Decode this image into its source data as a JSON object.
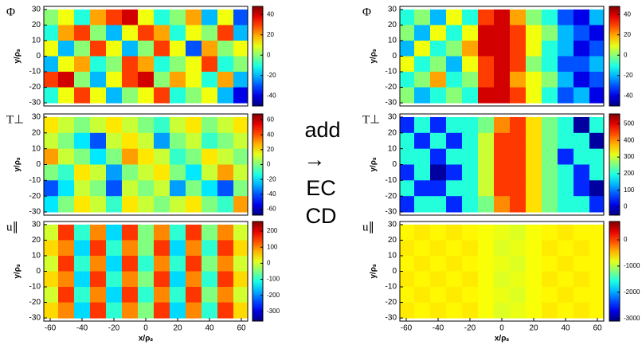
{
  "annotation": [
    "add",
    "→",
    "EC",
    "CD"
  ],
  "chart_data": [
    {
      "type": "heatmap",
      "title": "Φ",
      "ylabel": "y/ρₛ",
      "x": [
        -60,
        -50,
        -40,
        -30,
        -20,
        -10,
        0,
        10,
        20,
        30,
        40,
        50,
        60
      ],
      "y": [
        25,
        15,
        5,
        -5,
        -15,
        -25
      ],
      "z": [
        [
          0,
          10,
          -10,
          20,
          30,
          40,
          10,
          -10,
          0,
          20,
          -20,
          10,
          -30
        ],
        [
          -10,
          20,
          30,
          0,
          -20,
          10,
          30,
          20,
          -10,
          10,
          0,
          30,
          -20
        ],
        [
          10,
          -20,
          0,
          30,
          10,
          -20,
          0,
          30,
          10,
          -30,
          20,
          0,
          10
        ],
        [
          -20,
          10,
          20,
          -10,
          0,
          30,
          20,
          -10,
          0,
          10,
          30,
          -10,
          0
        ],
        [
          30,
          40,
          0,
          -20,
          10,
          30,
          40,
          0,
          20,
          10,
          -10,
          20,
          -20
        ],
        [
          -10,
          10,
          30,
          10,
          -20,
          0,
          10,
          30,
          -10,
          0,
          10,
          -20,
          -40
        ]
      ],
      "xlim": [
        -64,
        64
      ],
      "ylim": [
        -32,
        32
      ],
      "yticks": [
        -30,
        -20,
        -10,
        0,
        10,
        20,
        30
      ],
      "clim": [
        -50,
        48
      ],
      "cticks": [
        -40,
        -20,
        0,
        20,
        40
      ]
    },
    {
      "type": "heatmap",
      "title": "T⊥",
      "ylabel": "y/ρₛ",
      "x": [
        -60,
        -50,
        -40,
        -30,
        -20,
        -10,
        0,
        10,
        20,
        30,
        40,
        50,
        60
      ],
      "y": [
        25,
        15,
        5,
        -5,
        -15,
        -25
      ],
      "z": [
        [
          20,
          10,
          0,
          10,
          20,
          10,
          0,
          -10,
          10,
          20,
          0,
          10,
          20
        ],
        [
          10,
          0,
          -20,
          -40,
          10,
          20,
          10,
          -30,
          0,
          10,
          -10,
          0,
          10
        ],
        [
          30,
          10,
          0,
          -20,
          0,
          30,
          20,
          10,
          -10,
          0,
          20,
          10,
          0
        ],
        [
          0,
          -10,
          20,
          10,
          -30,
          0,
          10,
          20,
          0,
          -20,
          10,
          30,
          10
        ],
        [
          -40,
          -20,
          10,
          0,
          -40,
          10,
          0,
          10,
          -30,
          0,
          -20,
          -40,
          0
        ],
        [
          -20,
          0,
          20,
          10,
          -10,
          20,
          10,
          0,
          10,
          20,
          0,
          -10,
          30
        ]
      ],
      "xlim": [
        -64,
        64
      ],
      "ylim": [
        -32,
        32
      ],
      "yticks": [
        -30,
        -20,
        -10,
        0,
        10,
        20,
        30
      ],
      "clim": [
        -68,
        68
      ],
      "cticks": [
        -60,
        -40,
        -20,
        0,
        20,
        40,
        60
      ]
    },
    {
      "type": "heatmap",
      "title": "u∥",
      "ylabel": "y/ρₛ",
      "xlabel": "x/ρₛ",
      "x": [
        -60,
        -50,
        -40,
        -30,
        -20,
        -10,
        0,
        10,
        20,
        30,
        40,
        50,
        60
      ],
      "y": [
        25,
        15,
        5,
        -5,
        -15,
        -25
      ],
      "z": [
        [
          0,
          150,
          -100,
          100,
          -150,
          150,
          -50,
          100,
          -100,
          150,
          -50,
          100,
          0
        ],
        [
          50,
          100,
          -150,
          150,
          -100,
          100,
          -50,
          150,
          -150,
          100,
          -100,
          150,
          50
        ],
        [
          0,
          150,
          -100,
          100,
          -150,
          150,
          -100,
          100,
          -100,
          150,
          -50,
          100,
          0
        ],
        [
          50,
          100,
          -150,
          150,
          -100,
          100,
          -50,
          150,
          -150,
          100,
          -100,
          150,
          50
        ],
        [
          0,
          150,
          -100,
          100,
          -150,
          150,
          -100,
          100,
          -100,
          150,
          -50,
          100,
          0
        ],
        [
          50,
          100,
          -150,
          150,
          -100,
          100,
          -50,
          150,
          -150,
          100,
          -100,
          150,
          50
        ]
      ],
      "xlim": [
        -64,
        64
      ],
      "ylim": [
        -32,
        32
      ],
      "xticks": [
        -60,
        -40,
        -20,
        0,
        20,
        40,
        60
      ],
      "yticks": [
        -30,
        -20,
        -10,
        0,
        10,
        20,
        30
      ],
      "clim": [
        -360,
        260
      ],
      "cticks": [
        -300,
        -200,
        -100,
        0,
        100,
        200
      ]
    },
    {
      "type": "heatmap",
      "title": "Φ",
      "ylabel": "y/ρₛ",
      "x": [
        -60,
        -50,
        -40,
        -30,
        -20,
        -10,
        0,
        10,
        20,
        30,
        40,
        50,
        60
      ],
      "y": [
        25,
        15,
        5,
        -5,
        -15,
        -25
      ],
      "z": [
        [
          -10,
          0,
          -20,
          10,
          -10,
          30,
          40,
          20,
          0,
          -10,
          -30,
          -40,
          -20
        ],
        [
          0,
          -20,
          10,
          -10,
          10,
          40,
          40,
          30,
          10,
          0,
          -20,
          -30,
          -40
        ],
        [
          -20,
          10,
          -10,
          0,
          20,
          40,
          40,
          30,
          10,
          -10,
          -20,
          -40,
          -30
        ],
        [
          10,
          -10,
          0,
          -20,
          10,
          30,
          40,
          30,
          0,
          -10,
          -30,
          -30,
          -20
        ],
        [
          -10,
          0,
          20,
          -10,
          0,
          30,
          40,
          20,
          10,
          0,
          -20,
          -40,
          -30
        ],
        [
          0,
          -20,
          -10,
          0,
          -10,
          40,
          40,
          30,
          10,
          -10,
          -30,
          -20,
          -40
        ]
      ],
      "xlim": [
        -64,
        64
      ],
      "ylim": [
        -32,
        32
      ],
      "yticks": [
        -30,
        -20,
        -10,
        0,
        10,
        20,
        30
      ],
      "clim": [
        -50,
        48
      ],
      "cticks": [
        -40,
        -20,
        0,
        20,
        40
      ]
    },
    {
      "type": "heatmap",
      "title": "T⊥",
      "ylabel": "y/ρₛ",
      "x": [
        -60,
        -50,
        -40,
        -30,
        -20,
        -10,
        0,
        10,
        20,
        30,
        40,
        50,
        60
      ],
      "y": [
        25,
        15,
        5,
        -5,
        -15,
        -25
      ],
      "z": [
        [
          50,
          200,
          50,
          200,
          200,
          250,
          400,
          450,
          350,
          250,
          200,
          -30,
          200
        ],
        [
          200,
          50,
          200,
          50,
          200,
          300,
          450,
          450,
          350,
          250,
          200,
          200,
          -30
        ],
        [
          200,
          200,
          50,
          200,
          200,
          300,
          450,
          450,
          350,
          250,
          50,
          200,
          200
        ],
        [
          50,
          200,
          -30,
          50,
          200,
          300,
          450,
          450,
          350,
          250,
          200,
          50,
          200
        ],
        [
          200,
          50,
          50,
          200,
          200,
          300,
          450,
          450,
          350,
          250,
          200,
          50,
          -30
        ],
        [
          50,
          200,
          200,
          50,
          200,
          250,
          400,
          450,
          350,
          250,
          200,
          200,
          50
        ]
      ],
      "xlim": [
        -64,
        64
      ],
      "ylim": [
        -32,
        32
      ],
      "yticks": [
        -30,
        -20,
        -10,
        0,
        10,
        20,
        30
      ],
      "clim": [
        -50,
        560
      ],
      "cticks": [
        0,
        100,
        200,
        300,
        400,
        500
      ]
    },
    {
      "type": "heatmap",
      "title": "u∥",
      "ylabel": "y/ρₛ",
      "xlabel": "x/ρₛ",
      "x": [
        -60,
        -50,
        -40,
        -30,
        -20,
        -10,
        0,
        10,
        20,
        30,
        40,
        50,
        60
      ],
      "y": [
        25,
        15,
        5,
        -5,
        -15,
        -25
      ],
      "z": [
        [
          -700,
          -650,
          -700,
          -650,
          -700,
          -750,
          -800,
          -850,
          -750,
          -700,
          -650,
          -700,
          -700
        ],
        [
          -650,
          -700,
          -650,
          -700,
          -650,
          -750,
          -850,
          -800,
          -750,
          -650,
          -700,
          -650,
          -700
        ],
        [
          -700,
          -650,
          -700,
          -650,
          -700,
          -750,
          -800,
          -850,
          -750,
          -700,
          -650,
          -700,
          -700
        ],
        [
          -650,
          -700,
          -650,
          -700,
          -650,
          -750,
          -850,
          -800,
          -750,
          -650,
          -700,
          -650,
          -700
        ],
        [
          -700,
          -650,
          -700,
          -650,
          -700,
          -750,
          -800,
          -850,
          -750,
          -700,
          -650,
          -700,
          -700
        ],
        [
          -650,
          -700,
          -650,
          -700,
          -650,
          -750,
          -850,
          -800,
          -750,
          -650,
          -700,
          -650,
          -700
        ]
      ],
      "xlim": [
        -64,
        64
      ],
      "ylim": [
        -32,
        32
      ],
      "xticks": [
        -60,
        -40,
        -20,
        0,
        20,
        40,
        60
      ],
      "yticks": [
        -30,
        -20,
        -10,
        0,
        10,
        20,
        30
      ],
      "clim": [
        -3100,
        700
      ],
      "cticks": [
        -3000,
        -2000,
        -1000,
        0
      ]
    }
  ]
}
